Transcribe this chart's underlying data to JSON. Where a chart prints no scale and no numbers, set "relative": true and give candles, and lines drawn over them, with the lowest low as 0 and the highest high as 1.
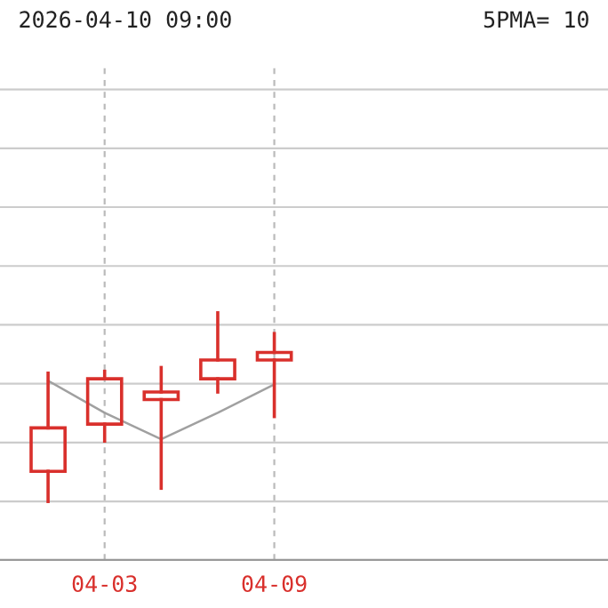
{
  "chart_data": {
    "type": "candlestick",
    "relative": true,
    "categories": [
      null,
      "04-03",
      null,
      null,
      "04-09"
    ],
    "ohlc": [
      [
        0.16,
        0.68,
        0,
        0.39
      ],
      [
        0.41,
        0.69,
        0.32,
        0.65
      ],
      [
        0.54,
        0.71,
        0.07,
        0.58
      ],
      [
        0.65,
        1,
        0.58,
        0.75
      ],
      [
        0.75,
        0.89,
        0.45,
        0.79
      ]
    ],
    "color": "#d9302c",
    "series": [
      {
        "type": "line",
        "color": "#a0a0a0",
        "values": [
          0.64,
          0.47,
          0.33,
          0.47,
          0.62
        ]
      }
    ],
    "grid": true,
    "annotations": [
      "2026-04-10 09:00",
      "5PMA= 10"
    ]
  }
}
